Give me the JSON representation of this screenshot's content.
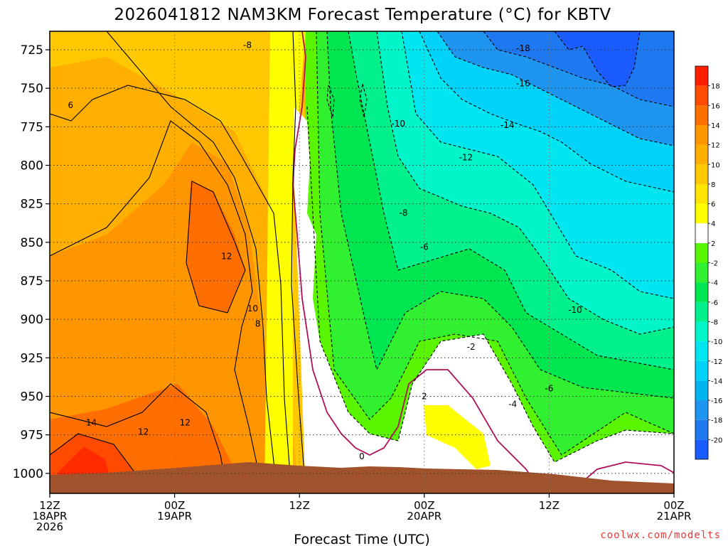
{
  "title": "2026041812 NAM3KM Forecast Temperature (°C) for KBTV",
  "credit": "coolwx.com/modelts",
  "chart_data": {
    "type": "heatmap",
    "title": "2026041812 NAM3KM Forecast Temperature (°C) for KBTV",
    "xlabel": "Forecast Time (UTC)",
    "ylabel": "",
    "x_ticks": [
      {
        "hours": 0,
        "lines": [
          "12Z",
          "18APR",
          "2026"
        ]
      },
      {
        "hours": 12,
        "lines": [
          "00Z",
          "19APR"
        ]
      },
      {
        "hours": 24,
        "lines": [
          "12Z"
        ]
      },
      {
        "hours": 36,
        "lines": [
          "00Z",
          "20APR"
        ]
      },
      {
        "hours": 48,
        "lines": [
          "12Z"
        ]
      },
      {
        "hours": 60,
        "lines": [
          "00Z",
          "21APR"
        ]
      }
    ],
    "xlim_hours": [
      0,
      60
    ],
    "y_ticks": [
      725,
      750,
      775,
      800,
      825,
      850,
      875,
      900,
      925,
      950,
      975,
      1000
    ],
    "ylim_hPa": [
      713,
      1013
    ],
    "grid": true,
    "colorbar": {
      "levels": [
        -22,
        -20,
        -18,
        -16,
        -14,
        -12,
        -10,
        -8,
        -6,
        -4,
        -2,
        2,
        4,
        6,
        8,
        10,
        12,
        14,
        16,
        18,
        20
      ],
      "labels": [
        "-20",
        "-18",
        "-16",
        "-14",
        "-12",
        "-10",
        "-8",
        "-6",
        "-4",
        "-2",
        "2",
        "4",
        "6",
        "8",
        "10",
        "12",
        "14",
        "16",
        "18"
      ],
      "colors": [
        "#1a5cff",
        "#1e78f0",
        "#1e96f0",
        "#00b4f0",
        "#00d2fa",
        "#00e6f0",
        "#00f5c8",
        "#00f08c",
        "#00e650",
        "#30f030",
        "#5af500",
        "#ffffff",
        "#ffff00",
        "#ffe600",
        "#ffc800",
        "#ffaf00",
        "#ff9600",
        "#ff6e00",
        "#ff4b00",
        "#ff1e00"
      ],
      "white_band": [
        -2,
        2
      ]
    },
    "contour_labels": [
      {
        "text": "-8",
        "hours": 19.0,
        "hPa": 722
      },
      {
        "text": "-18",
        "hours": 45.5,
        "hPa": 724
      },
      {
        "text": "-16",
        "hours": 45.5,
        "hPa": 747
      },
      {
        "text": "-14",
        "hours": 44.0,
        "hPa": 774
      },
      {
        "text": "-10",
        "hours": 33.5,
        "hPa": 773
      },
      {
        "text": "-12",
        "hours": 40.0,
        "hPa": 795
      },
      {
        "text": "-8",
        "hours": 34.0,
        "hPa": 831
      },
      {
        "text": "-6",
        "hours": 36.0,
        "hPa": 853
      },
      {
        "text": "-10",
        "hours": 50.5,
        "hPa": 894
      },
      {
        "text": "-2",
        "hours": 40.5,
        "hPa": 918
      },
      {
        "text": "-6",
        "hours": 48.0,
        "hPa": 945
      },
      {
        "text": "-4",
        "hours": 44.5,
        "hPa": 955
      },
      {
        "text": "2",
        "hours": 36.0,
        "hPa": 950
      },
      {
        "text": "0",
        "hours": 30.0,
        "hPa": 989
      },
      {
        "text": "6",
        "hours": 2.0,
        "hPa": 761
      },
      {
        "text": "12",
        "hours": 17.0,
        "hPa": 859
      },
      {
        "text": "10",
        "hours": 19.5,
        "hPa": 893
      },
      {
        "text": "8",
        "hours": 20.0,
        "hPa": 903
      },
      {
        "text": "14",
        "hours": 4.0,
        "hPa": 967
      },
      {
        "text": "12",
        "hours": 9.0,
        "hPa": 973
      },
      {
        "text": "12",
        "hours": 13.0,
        "hPa": 967
      }
    ],
    "colors": {
      "ground": "#a0522d",
      "freezing_contour": "#b0105a",
      "grid": "#888888"
    }
  }
}
